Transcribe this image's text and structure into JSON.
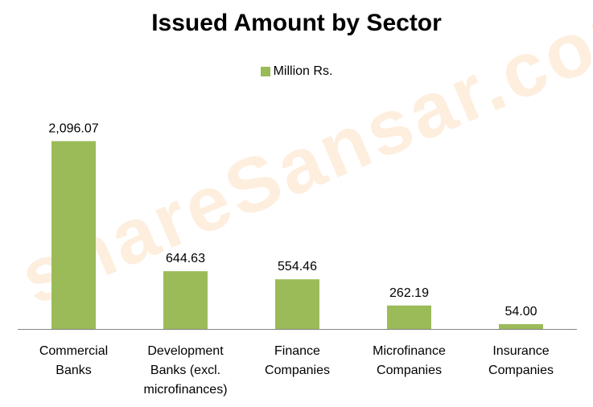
{
  "watermark": "shareSansar.com",
  "chart_data": {
    "type": "bar",
    "title": "Issued Amount by Sector",
    "legend": {
      "position": "top",
      "entries": [
        "Million Rs."
      ]
    },
    "categories": [
      [
        "Commercial",
        "Banks"
      ],
      [
        "Development",
        "Banks (excl.",
        "microfinances)"
      ],
      [
        "Finance",
        "Companies"
      ],
      [
        "Microfinance",
        "Companies"
      ],
      [
        "Insurance",
        "Companies"
      ]
    ],
    "series": [
      {
        "name": "Million Rs.",
        "color": "#9bbb59",
        "values": [
          2096.07,
          644.63,
          554.46,
          262.19,
          54.0
        ],
        "labels": [
          "2,096.07",
          "644.63",
          "554.46",
          "262.19",
          "54.00"
        ]
      }
    ],
    "ylim": [
      0,
      2100
    ],
    "grid": false
  }
}
